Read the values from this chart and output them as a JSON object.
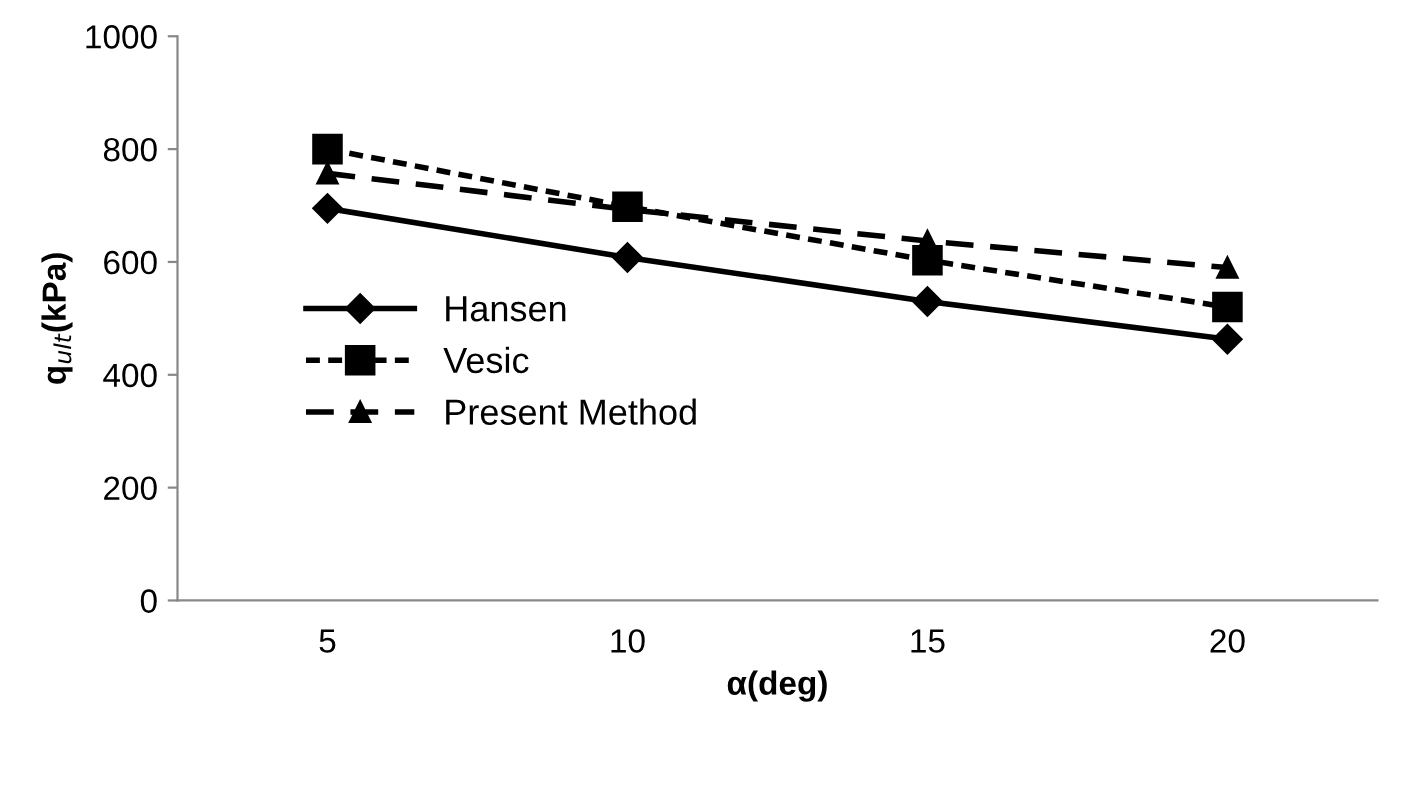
{
  "chart_data": {
    "type": "line",
    "xlabel": "α(deg)",
    "ylabel": "q$_{ult}$(kPa)",
    "categories": [
      "5",
      "10",
      "15",
      "20"
    ],
    "series": [
      {
        "name": "Hansen",
        "color": "#000000",
        "values": [
          695,
          608,
          530,
          463
        ],
        "marker": "diamond",
        "line_style": "solid"
      },
      {
        "name": "Vesic",
        "color": "#000000",
        "values": [
          800,
          698,
          603,
          520
        ],
        "marker": "square",
        "line_style": "dotted"
      },
      {
        "name": "Present Method",
        "color": "#000000",
        "values": [
          757,
          693,
          637,
          590
        ],
        "marker": "triangle",
        "line_style": "dashed"
      }
    ],
    "ylim": [
      0,
      1000
    ],
    "yticks": [
      0,
      200,
      400,
      600,
      800,
      1000
    ],
    "grid": false,
    "legend": "center left"
  }
}
